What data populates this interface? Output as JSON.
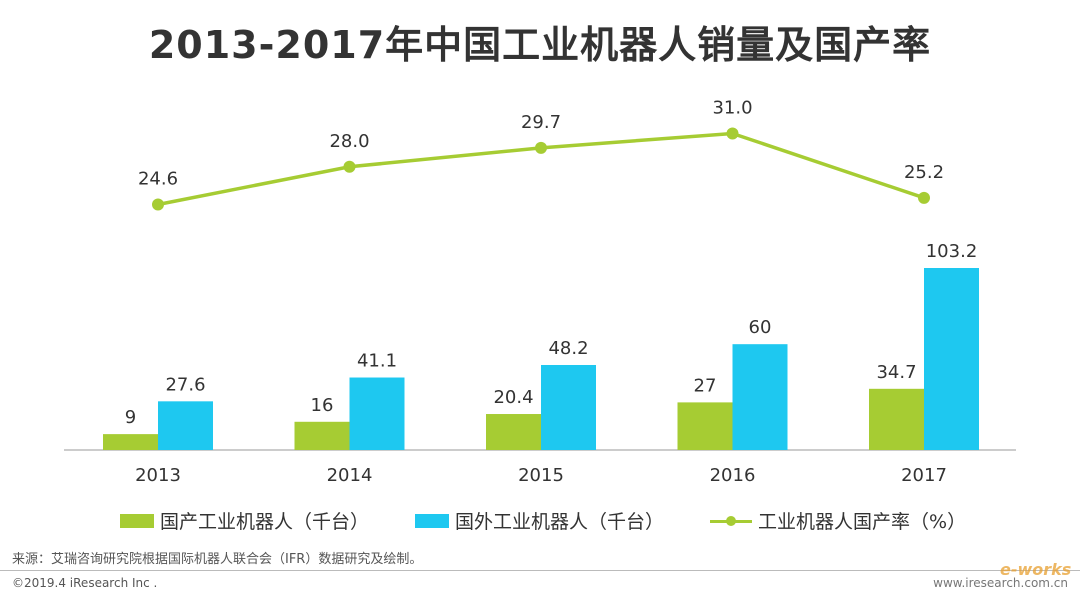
{
  "title": "2013-2017年中国工业机器人销量及国产率",
  "colors": {
    "domestic": "#a6cc33",
    "foreign": "#1ec8f0",
    "rate": "#a6cc33",
    "axis": "#bbbbbb",
    "label": "#333333"
  },
  "chart_data": {
    "type": "bar",
    "categories": [
      "2013",
      "2014",
      "2015",
      "2016",
      "2017"
    ],
    "series": [
      {
        "name": "国产工业机器人（千台）",
        "type": "bar",
        "values": [
          9,
          16,
          20.4,
          27,
          34.7
        ],
        "labels": [
          "9",
          "16",
          "20.4",
          "27",
          "34.7"
        ]
      },
      {
        "name": "国外工业机器人（千台）",
        "type": "bar",
        "values": [
          27.6,
          41.1,
          48.2,
          60,
          103.2
        ],
        "labels": [
          "27.6",
          "41.1",
          "48.2",
          "60",
          "103.2"
        ]
      },
      {
        "name": "工业机器人国产率（%）",
        "type": "line",
        "values": [
          24.6,
          28.0,
          29.7,
          31.0,
          25.2
        ],
        "labels": [
          "24.6",
          "28.0",
          "29.7",
          "31.0",
          "25.2"
        ]
      }
    ],
    "title": "2013-2017年中国工业机器人销量及国产率",
    "legend": "bottom",
    "grid": false
  },
  "legend": {
    "domestic": "国产工业机器人（千台）",
    "foreign": "国外工业机器人（千台）",
    "rate": "工业机器人国产率（%）"
  },
  "footer": {
    "source": "来源：艾瑞咨询研究院根据国际机器人联合会（IFR）数据研究及绘制。",
    "copyright": "©2019.4 iResearch Inc .",
    "website": "www.iresearch.com.cn",
    "watermark": "e-works"
  }
}
